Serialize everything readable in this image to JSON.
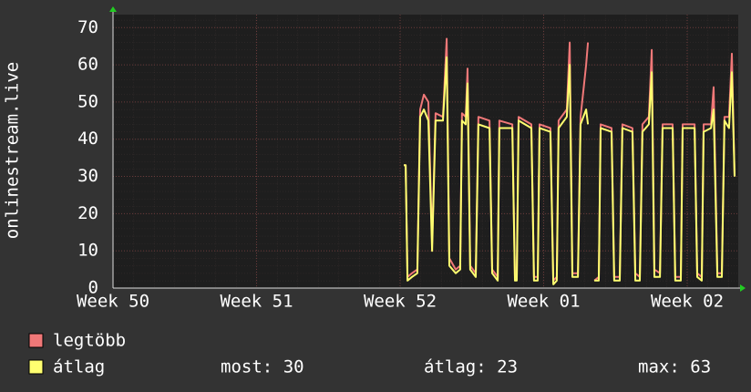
{
  "chart_data": {
    "type": "line",
    "y_label": "onlinestream.live",
    "x": [
      14.18,
      14.27,
      14.36,
      14.58,
      14.84,
      14.98,
      15.16,
      15.38,
      15.56,
      15.73,
      16.09,
      16.27,
      16.4,
      16.71,
      16.93,
      17.02,
      17.2,
      17.29,
      17.42,
      17.69,
      17.82,
      18.36,
      18.49,
      18.76,
      18.84,
      19.47,
      19.6,
      19.69,
      19.78,
      20.4,
      20.53,
      20.71,
      20.8,
      21.33,
      21.47,
      21.64,
      21.73,
      22.13,
      22.27,
      22.4,
      22.67,
      22.8,
      23.07,
      23.16,
      23.24,
      23.47,
      23.69,
      23.78,
      24.31,
      24.44,
      24.71,
      24.84,
      25.33,
      25.47,
      25.69,
      25.82,
      26.13,
      26.27,
      26.4,
      26.67,
      26.8,
      27.29,
      27.42,
      27.69,
      27.78,
      28.36,
      28.49,
      28.71,
      28.8,
      29.16,
      29.29,
      29.47,
      29.69,
      29.82,
      30.04,
      30.18,
      30.31
    ],
    "series": [
      {
        "name": "legtöbb",
        "color": "#f07878",
        "values": [
          33,
          33,
          3,
          4,
          5,
          48,
          52,
          50,
          12,
          47,
          46,
          67,
          8,
          5,
          6,
          47,
          46,
          59,
          6,
          4,
          46,
          45,
          5,
          3,
          45,
          44,
          3,
          3,
          46,
          44,
          3,
          3,
          44,
          43,
          2,
          3,
          45,
          48,
          66,
          4,
          4,
          46,
          60,
          66,
          null,
          2,
          3,
          44,
          43,
          3,
          3,
          44,
          43,
          4,
          3,
          44,
          46,
          64,
          5,
          4,
          44,
          44,
          3,
          3,
          44,
          44,
          4,
          3,
          44,
          44,
          54,
          4,
          4,
          46,
          46,
          63,
          30
        ]
      },
      {
        "name": "átlag",
        "color": "#ffff70",
        "values": [
          33,
          33,
          2,
          3,
          4,
          46,
          48,
          45,
          10,
          45,
          45,
          62,
          6,
          4,
          5,
          45,
          44,
          55,
          5,
          3,
          44,
          43,
          4,
          2,
          43,
          43,
          2,
          2,
          45,
          43,
          2,
          2,
          43,
          42,
          1,
          2,
          43,
          46,
          60,
          3,
          3,
          44,
          48,
          44,
          null,
          2,
          2,
          43,
          42,
          2,
          2,
          43,
          42,
          2,
          2,
          42,
          44,
          58,
          3,
          3,
          43,
          43,
          2,
          2,
          43,
          43,
          3,
          2,
          42,
          43,
          48,
          3,
          3,
          45,
          43,
          58,
          30
        ]
      }
    ],
    "xlim": [
      0,
      30.49
    ],
    "xticks": [
      {
        "value": 0,
        "label": "Week 50"
      },
      {
        "value": 7,
        "label": "Week 51"
      },
      {
        "value": 14,
        "label": "Week 52"
      },
      {
        "value": 21,
        "label": "Week 01"
      },
      {
        "value": 28,
        "label": "Week 02"
      }
    ],
    "ylim": [
      0,
      73.5
    ],
    "yticks": [
      0,
      10,
      20,
      30,
      40,
      50,
      60,
      70
    ],
    "grid": true,
    "stats": [
      {
        "label": "most:",
        "value": 30
      },
      {
        "label": "átlag:",
        "value": 23
      },
      {
        "label": "max:",
        "value": 63
      }
    ]
  }
}
